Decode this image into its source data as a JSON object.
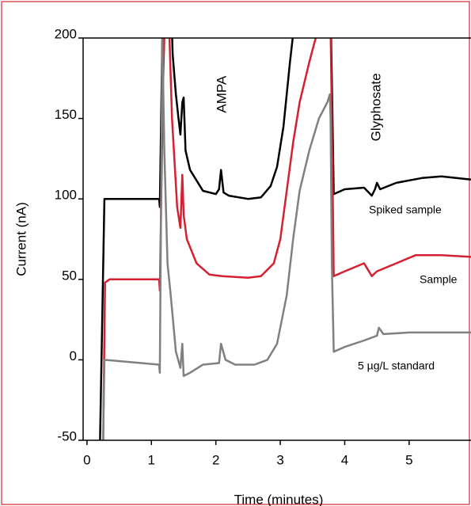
{
  "chart_data": {
    "type": "line",
    "xlabel": "Time (minutes)",
    "ylabel": "Current (nA)",
    "xlim": [
      -0.06,
      5.96
    ],
    "ylim": [
      -50,
      200
    ],
    "xticks": [
      0,
      1,
      2,
      3,
      4,
      5
    ],
    "yticks": [
      -50,
      0,
      50,
      100,
      150,
      200
    ],
    "annotations": [
      {
        "text": "AMPA",
        "x": 2.1,
        "y": 165
      },
      {
        "text": "Glyphosate",
        "x": 4.5,
        "y": 157
      }
    ],
    "series": [
      {
        "name": "Spiked sample",
        "color": "#000000",
        "x": [
          0.2,
          0.27,
          1.12,
          1.13,
          1.17,
          1.2,
          1.3,
          1.33,
          1.38,
          1.42,
          1.45,
          1.48,
          1.5,
          1.53,
          1.6,
          1.8,
          2.0,
          2.05,
          2.08,
          2.12,
          2.2,
          2.5,
          2.7,
          2.85,
          2.95,
          3.05,
          3.15,
          3.25,
          3.5,
          3.77,
          3.8,
          3.83,
          4.0,
          4.3,
          4.42,
          4.47,
          4.5,
          4.55,
          4.8,
          5.2,
          5.5,
          5.96
        ],
        "values": [
          -55,
          100,
          100,
          95,
          200,
          230,
          230,
          190,
          165,
          150,
          140,
          160,
          163,
          130,
          118,
          105,
          103,
          106,
          118,
          104,
          102,
          100,
          101,
          108,
          120,
          145,
          185,
          220,
          240,
          240,
          175,
          103,
          106,
          107,
          102,
          106,
          110,
          106,
          110,
          113,
          114,
          112
        ]
      },
      {
        "name": "Sample",
        "color": "#d62030",
        "x": [
          0.25,
          0.28,
          0.35,
          1.12,
          1.13,
          1.18,
          1.22,
          1.28,
          1.32,
          1.4,
          1.45,
          1.48,
          1.5,
          1.55,
          1.7,
          1.9,
          2.1,
          2.5,
          2.7,
          2.9,
          3.0,
          3.1,
          3.2,
          3.3,
          3.45,
          3.55,
          3.7,
          3.77,
          3.8,
          3.83,
          4.0,
          4.3,
          4.42,
          4.5,
          4.8,
          5.1,
          5.5,
          5.96
        ],
        "values": [
          -55,
          48,
          50,
          50,
          43,
          170,
          230,
          200,
          150,
          95,
          82,
          115,
          90,
          75,
          60,
          53,
          52,
          51,
          52,
          60,
          75,
          105,
          135,
          160,
          185,
          200,
          230,
          240,
          150,
          52,
          55,
          60,
          52,
          55,
          60,
          65,
          65,
          64
        ]
      },
      {
        "name": "5 µg/L standard",
        "color": "#808080",
        "x": [
          0.25,
          0.27,
          1.12,
          1.13,
          1.17,
          1.2,
          1.25,
          1.3,
          1.38,
          1.45,
          1.48,
          1.5,
          1.6,
          1.8,
          2.05,
          2.08,
          2.15,
          2.3,
          2.6,
          2.8,
          2.95,
          3.1,
          3.2,
          3.3,
          3.45,
          3.6,
          3.73,
          3.77,
          3.78,
          3.8,
          3.83,
          4.0,
          4.3,
          4.5,
          4.53,
          4.6,
          5.0,
          5.5,
          5.96
        ],
        "values": [
          -55,
          0,
          -3,
          -8,
          200,
          130,
          60,
          40,
          5,
          -5,
          10,
          -10,
          -8,
          -3,
          -2,
          10,
          0,
          -3,
          -3,
          0,
          10,
          40,
          75,
          105,
          130,
          150,
          160,
          165,
          150,
          60,
          5,
          8,
          12,
          15,
          20,
          16,
          17,
          17,
          17
        ]
      }
    ]
  }
}
